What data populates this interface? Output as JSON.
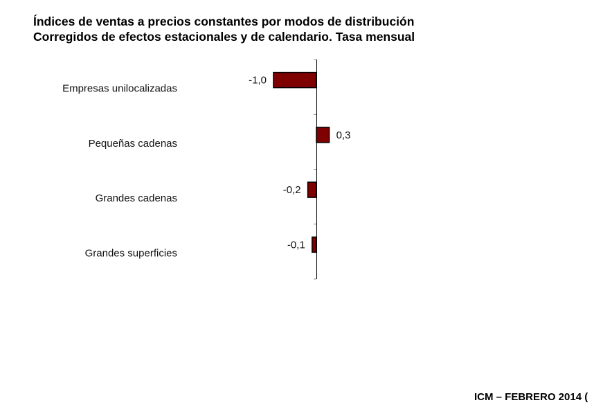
{
  "header": {
    "title": "Índices de ventas a precios constantes por modos de distribución",
    "subtitle": "Corregidos de efectos estacionales y de calendario. Tasa mensual"
  },
  "footer": {
    "text": "ICM – FEBRERO 2014 ("
  },
  "colors": {
    "bar_fill": "#7f0000",
    "bar_stroke": "#000000",
    "axis": "#000000"
  },
  "chart_data": {
    "type": "bar",
    "orientation": "horizontal",
    "title": "Índices de ventas a precios constantes por modos de distribución",
    "subtitle": "Corregidos de efectos estacionales y de calendario. Tasa mensual",
    "categories": [
      "Empresas unilocalizadas",
      "Pequeñas cadenas",
      "Grandes cadenas",
      "Grandes superficies"
    ],
    "values": [
      -1.0,
      0.3,
      -0.2,
      -0.1
    ],
    "data_labels": [
      "-1,0",
      "0,3",
      "-0,2",
      "-0,1"
    ],
    "xlabel": "",
    "ylabel": "",
    "grid": false,
    "legend": "none"
  }
}
